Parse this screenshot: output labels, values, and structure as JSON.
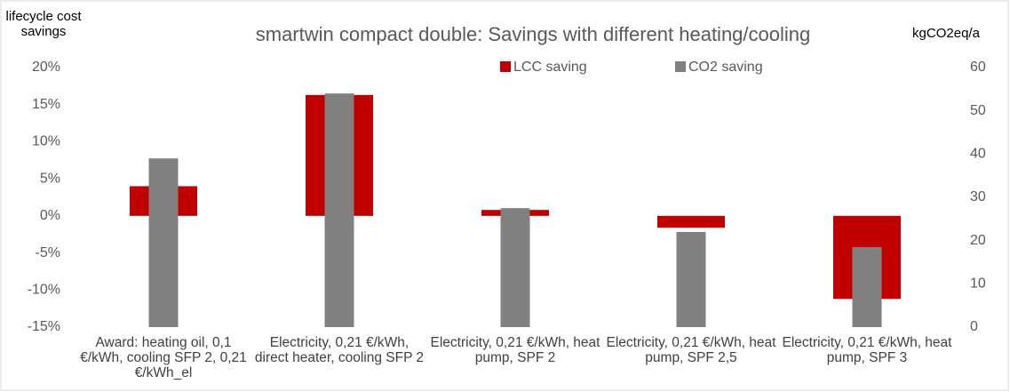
{
  "chart_data": {
    "type": "bar",
    "title": "smartwin compact double: Savings with different heating/cooling",
    "y_label": "lifecycle cost savings",
    "y2_label": "kgCO2eq/a",
    "categories": [
      "Award: heating oil, 0,1 €/kWh, cooling SFP 2, 0,21 €/kWh_el",
      "Electricity, 0,21 €/kWh, direct heater, cooling SFP 2",
      "Electricity, 0,21 €/kWh, heat pump, SPF 2",
      "Electricity, 0,21 €/kWh, heat pump, SPF 2,5",
      "Electricity, 0,21 €/kWh, heat pump, SPF 3"
    ],
    "series": [
      {
        "name": "LCC saving",
        "color": "#c00000",
        "values": [
          4,
          16.3,
          0.8,
          -1.6,
          -11.2
        ]
      },
      {
        "name": "CO2 saving",
        "color": "#808080",
        "axis": "y2",
        "values": [
          39,
          54,
          27.5,
          22,
          18.5
        ]
      }
    ],
    "ylim": [
      -15,
      20
    ],
    "yticks": [
      {
        "value": -15,
        "label": "-15%"
      },
      {
        "value": -10,
        "label": "-10%"
      },
      {
        "value": -5,
        "label": "-5%"
      },
      {
        "value": 0,
        "label": "0%"
      },
      {
        "value": 5,
        "label": "5%"
      },
      {
        "value": 10,
        "label": "10%"
      },
      {
        "value": 15,
        "label": "15%"
      },
      {
        "value": 20,
        "label": "20%"
      }
    ],
    "y2lim": [
      0,
      60
    ],
    "y2ticks": [
      0,
      10,
      20,
      30,
      40,
      50,
      60
    ],
    "legend": "top"
  }
}
